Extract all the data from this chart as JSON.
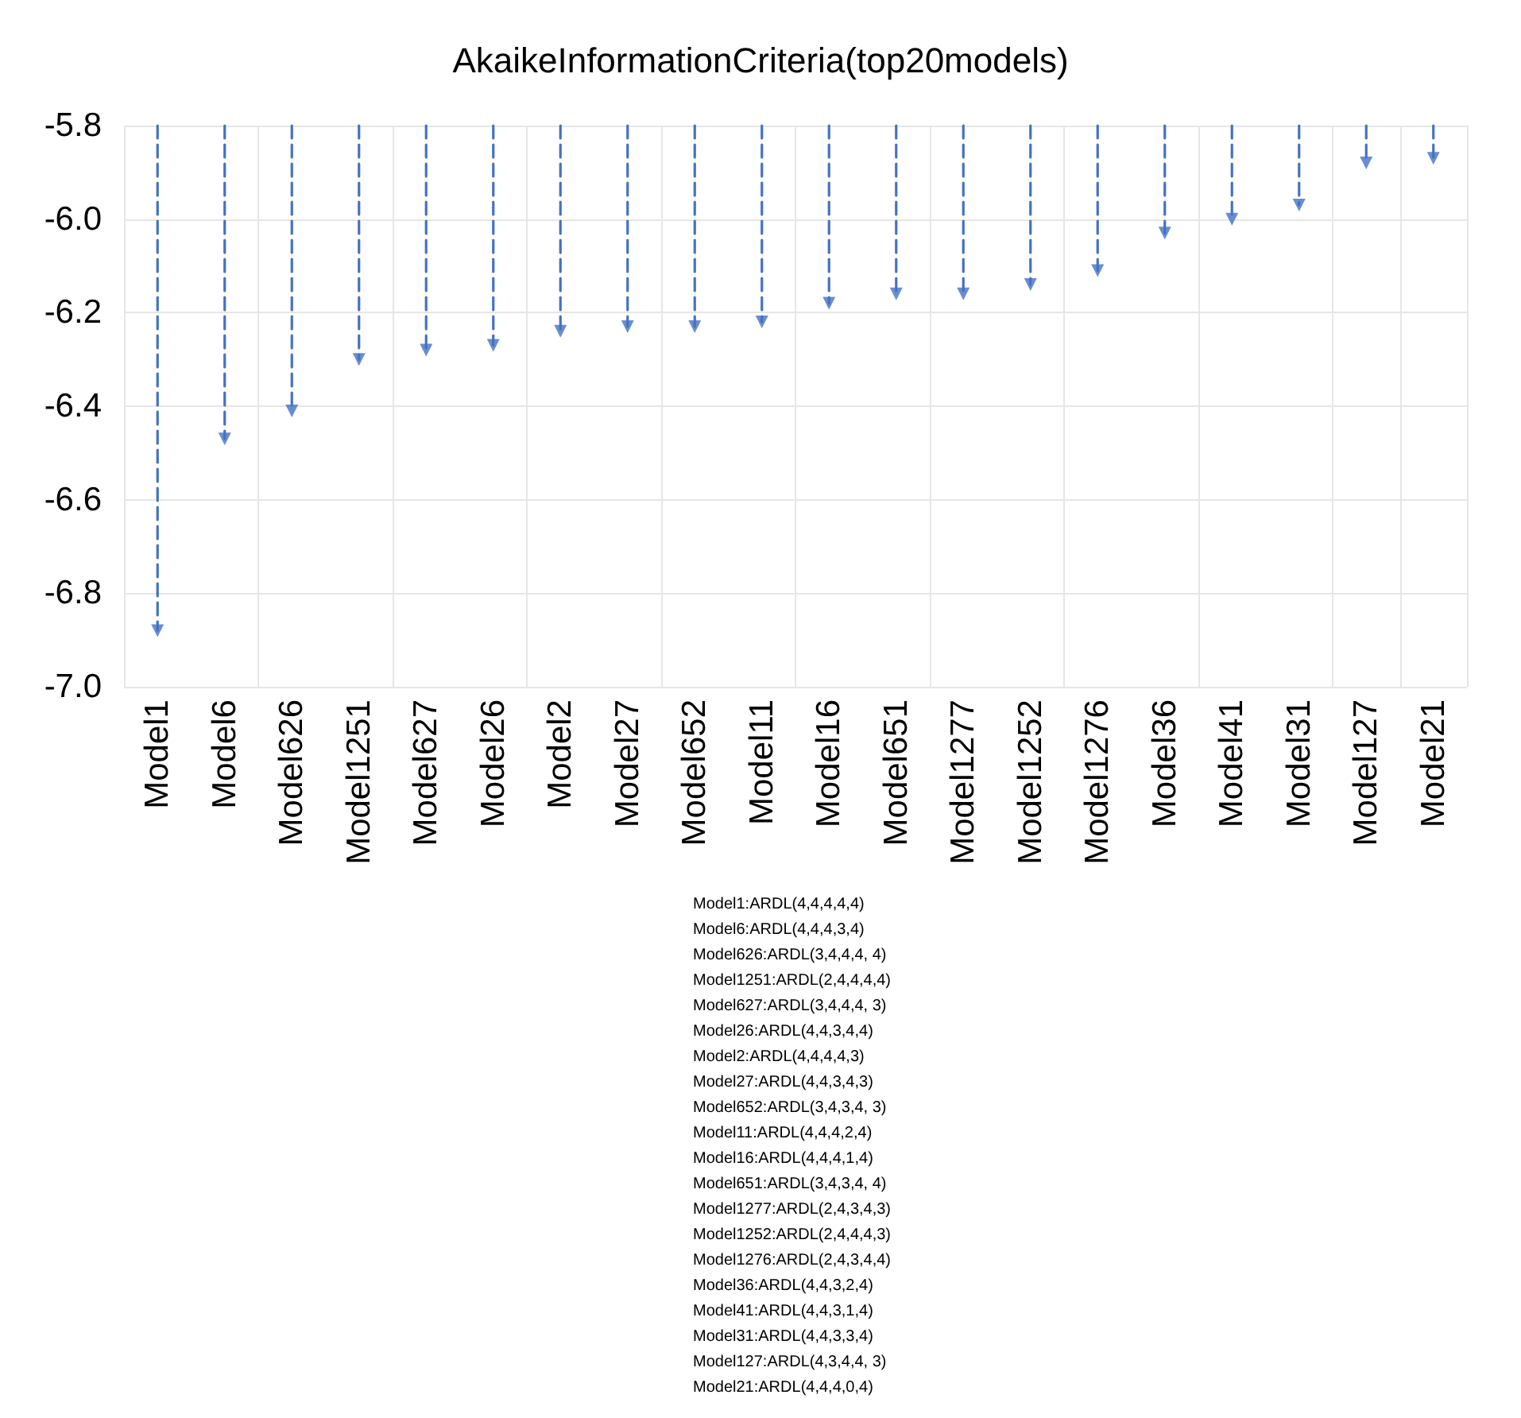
{
  "chart_data": {
    "type": "lollipop",
    "title": "AkaikeInformationCriteria(top20models)",
    "categories": [
      "Model1",
      "Model6",
      "Model626",
      "Model1251",
      "Model627",
      "Model26",
      "Model2",
      "Model27",
      "Model652",
      "Model11",
      "Model16",
      "Model651",
      "Model1277",
      "Model1252",
      "Model1276",
      "Model36",
      "Model41",
      "Model31",
      "Model127",
      "Model21"
    ],
    "values": [
      -6.88,
      -6.47,
      -6.41,
      -6.3,
      -6.28,
      -6.27,
      -6.24,
      -6.23,
      -6.23,
      -6.22,
      -6.18,
      -6.16,
      -6.16,
      -6.14,
      -6.11,
      -6.03,
      -6.0,
      -5.97,
      -5.88,
      -5.87
    ],
    "color": "#4472c4",
    "marker": "triangle",
    "line_style": "dashed",
    "ylim": [
      -7.0,
      -5.8
    ],
    "yticks": [
      {
        "value": -7.0,
        "label": "-7.0"
      },
      {
        "value": -6.8,
        "label": "-6.8"
      },
      {
        "value": -6.6,
        "label": "-6.6"
      },
      {
        "value": -6.4,
        "label": "-6.4"
      },
      {
        "value": -6.2,
        "label": "-6.2"
      },
      {
        "value": -6.0,
        "label": "-6.0"
      },
      {
        "value": -5.8,
        "label": "-5.8"
      }
    ],
    "grid": true,
    "annotations": [
      "Model1:ARDL(4,4,4,4,4)",
      "Model6:ARDL(4,4,4,3,4)",
      "Model626:ARDL(3,4,4,4, 4)",
      "Model1251:ARDL(2,4,4,4,4)",
      "Model627:ARDL(3,4,4,4, 3)",
      "Model26:ARDL(4,4,3,4,4)",
      "Model2:ARDL(4,4,4,4,3)",
      "Model27:ARDL(4,4,3,4,3)",
      "Model652:ARDL(3,4,3,4, 3)",
      "Model11:ARDL(4,4,4,2,4)",
      "Model16:ARDL(4,4,4,1,4)",
      "Model651:ARDL(3,4,3,4, 4)",
      "Model1277:ARDL(2,4,3,4,3)",
      "Model1252:ARDL(2,4,4,4,3)",
      "Model1276:ARDL(2,4,3,4,4)",
      "Model36:ARDL(4,4,3,2,4)",
      "Model41:ARDL(4,4,3,1,4)",
      "Model31:ARDL(4,4,3,3,4)",
      "Model127:ARDL(4,3,4,4, 3)",
      "Model21:ARDL(4,4,4,0,4)"
    ]
  }
}
